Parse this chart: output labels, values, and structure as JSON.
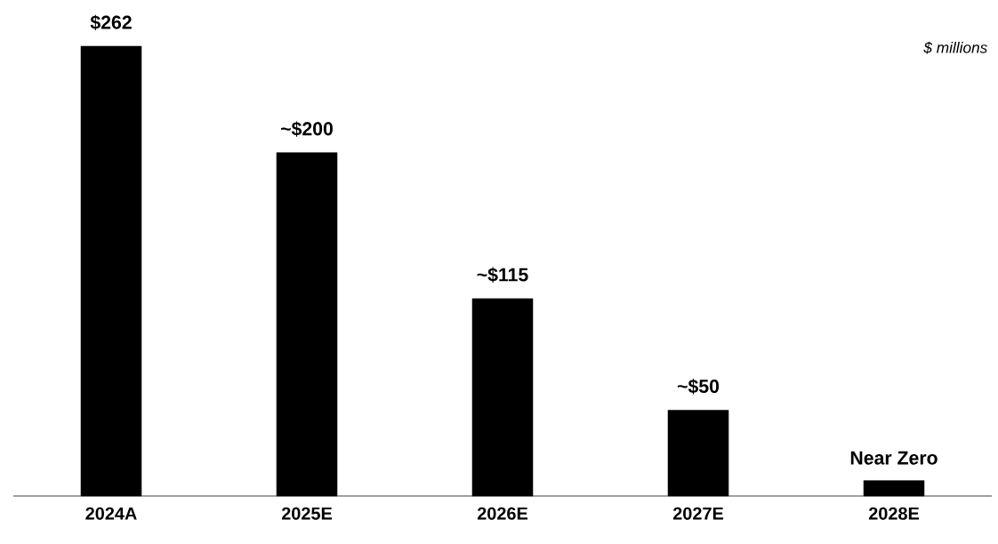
{
  "chart_data": {
    "type": "bar",
    "categories": [
      "2024A",
      "2025E",
      "2026E",
      "2027E",
      "2028E"
    ],
    "values": [
      262,
      200,
      115,
      50,
      9
    ],
    "value_labels": [
      "$262",
      "~$200",
      "~$115",
      "~$50",
      "Near Zero"
    ],
    "color": "#000000",
    "annotations": [
      "$ millions"
    ]
  }
}
